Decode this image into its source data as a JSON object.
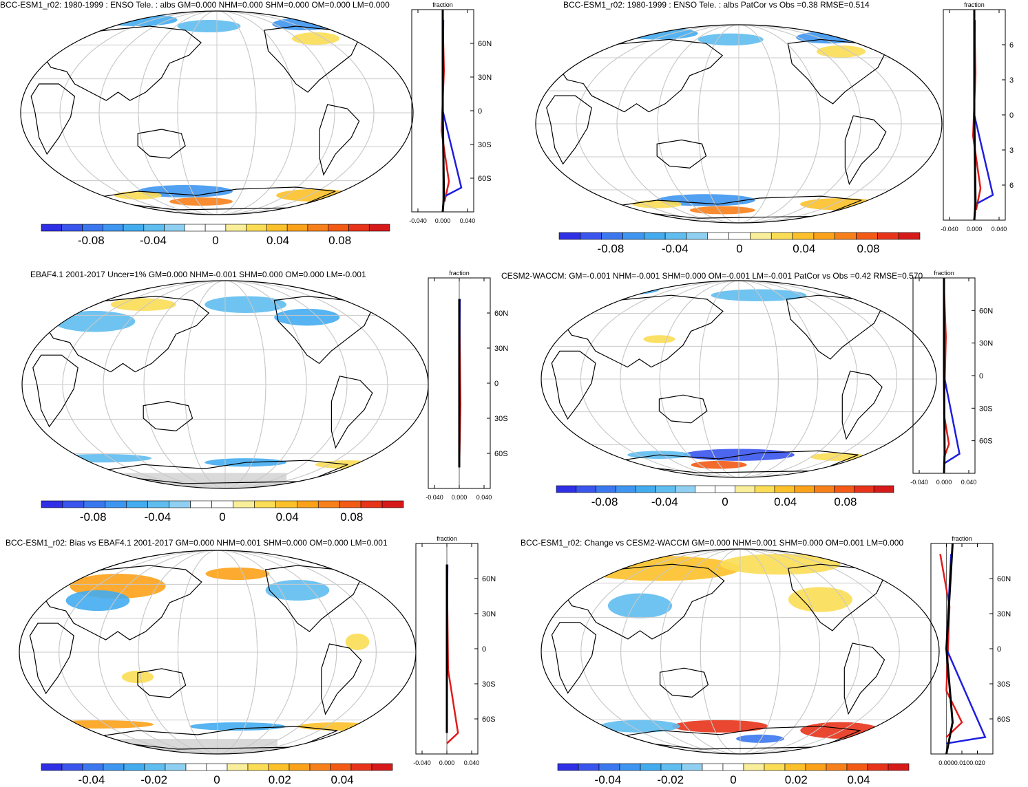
{
  "colors": {
    "colorbar": [
      "#2f2fe6",
      "#3a55ee",
      "#3b78f0",
      "#3e96f0",
      "#43acef",
      "#5fbdf0",
      "#8fd0f2",
      "#ffffff",
      "#ffffff",
      "#f9ee9a",
      "#fbdd55",
      "#fcc12a",
      "#fca21a",
      "#f8801a",
      "#f25a16",
      "#e8331b",
      "#d61a1a"
    ],
    "land_outline": "#000000",
    "grid": "#c8c8c8",
    "missing": "#d9d9d9",
    "line_red": "#e11b1b",
    "line_blue": "#1e1ee0",
    "line_black": "#000000"
  },
  "panels": [
    {
      "id": "p1",
      "title": "BCC-ESM1_r02: 1980-1999 : ENSO Tele. : albs GM=0.000 NHM=0.000 SHM=0.000 OM=0.000 LM=0.000",
      "colorbar_labels": [
        "-0.08",
        "-0.04",
        "0",
        "0.04",
        "0.08"
      ],
      "zonal": {
        "header": "fraction",
        "lat_labels": [
          "60N",
          "30N",
          "0",
          "30S",
          "60S"
        ],
        "x_labels": [
          "-0.040",
          "0.000",
          "0.040"
        ]
      }
    },
    {
      "id": "p2",
      "title": "BCC-ESM1_r02: 1980-1999 : ENSO Tele. : albs PatCor vs Obs =0.38 RMSE=0.514",
      "colorbar_labels": [
        "-0.08",
        "-0.04",
        "0",
        "0.04",
        "0.08"
      ],
      "zonal": {
        "header": "fraction",
        "lat_labels": [
          "6",
          "3",
          "0",
          "3",
          "6"
        ],
        "x_labels": [
          "-0.040",
          "0.000",
          "0.040"
        ]
      }
    },
    {
      "id": "p3",
      "title": "EBAF4.1 2001-2017 Uncer=1% GM=0.000 NHM=-0.001 SHM=0.000 OM=0.000 LM=-0.001",
      "colorbar_labels": [
        "-0.08",
        "-0.04",
        "0",
        "0.04",
        "0.08"
      ],
      "zonal": {
        "header": "fraction",
        "lat_labels": [
          "60N",
          "30N",
          "0",
          "30S",
          "60S"
        ],
        "x_labels": [
          "-0.040",
          "0.000",
          "0.040"
        ]
      }
    },
    {
      "id": "p4",
      "title": "CESM2-WACCM: GM=-0.001 NHM=-0.001 SHM=0.000 OM=-0.001 LM=-0.001 PatCor vs Obs =0.42 RMSE=0.570",
      "colorbar_labels": [
        "-0.08",
        "-0.04",
        "0",
        "0.04",
        "0.08"
      ],
      "zonal": {
        "header": "fraction",
        "lat_labels": [
          "60N",
          "30N",
          "0",
          "30S",
          "60S"
        ],
        "x_labels": [
          "-0.040",
          "0.000",
          "0.040"
        ]
      }
    },
    {
      "id": "p5",
      "title": "BCC-ESM1_r02: Bias vs EBAF4.1 2001-2017 GM=0.000 NHM=0.001 SHM=0.000 OM=0.000 LM=0.001",
      "colorbar_labels": [
        "-0.04",
        "-0.02",
        "0",
        "0.02",
        "0.04"
      ],
      "zonal": {
        "header": "fraction",
        "lat_labels": [
          "60N",
          "30N",
          "0",
          "30S",
          "60S"
        ],
        "x_labels": [
          "-0.040",
          "0.000",
          "0.040"
        ]
      }
    },
    {
      "id": "p6",
      "title": "BCC-ESM1_r02: Change vs CESM2-WACCM GM=0.000 NHM=0.001 SHM=0.000 OM=0.001 LM=0.000",
      "colorbar_labels": [
        "-0.04",
        "-0.02",
        "0",
        "0.02",
        "0.04"
      ],
      "zonal": {
        "header": "fraction",
        "lat_labels": [
          "60N",
          "30N",
          "0",
          "30S",
          "60S"
        ],
        "x_labels": [
          "0.000",
          "0.010",
          "0.020"
        ]
      }
    }
  ]
}
